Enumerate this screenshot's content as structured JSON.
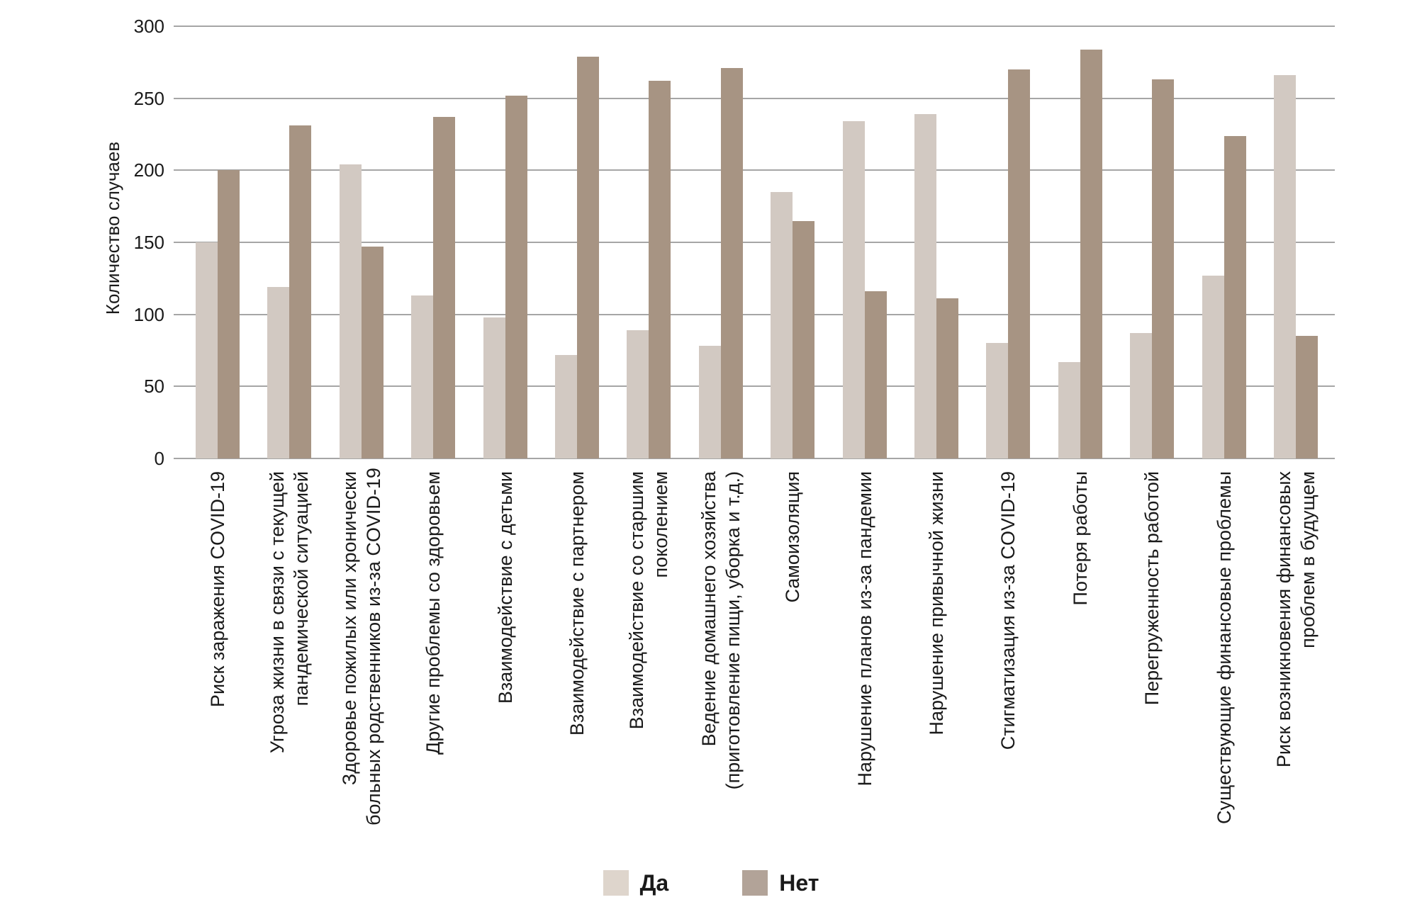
{
  "chart_data": {
    "type": "bar",
    "title": "",
    "xlabel": "",
    "ylabel": "Количество случаев",
    "ylim": [
      0,
      300
    ],
    "yticks": [
      0,
      50,
      100,
      150,
      200,
      250,
      300
    ],
    "grid": true,
    "legend_position": "bottom-center",
    "categories": [
      {
        "label": "Риск заражения COVID-19",
        "lines": [
          "Риск заражения COVID-19"
        ]
      },
      {
        "label": "Угроза жизни в связи с текущей пандемической ситуацией",
        "lines": [
          "Угроза жизни в связи с текущей",
          "пандемической ситуацией"
        ]
      },
      {
        "label": "Здоровье пожилых или хронически больных родственников из-за COVID-19",
        "lines": [
          "Здоровье пожилых или хронически",
          "больных родственников из-за COVID-19"
        ]
      },
      {
        "label": "Другие проблемы со здоровьем",
        "lines": [
          "Другие проблемы со здоровьем"
        ]
      },
      {
        "label": "Взаимодействие с детьми",
        "lines": [
          "Взаимодействие с детьми"
        ]
      },
      {
        "label": "Взаимодействие с партнером",
        "lines": [
          "Взаимодействие с партнером"
        ]
      },
      {
        "label": "Взаимодействие со старшим поколением",
        "lines": [
          "Взаимодействие со старшим",
          "поколением"
        ]
      },
      {
        "label": "Ведение домашнего хозяйства (приготовление пищи, уборка и т.д.)",
        "lines": [
          "Ведение домашнего хозяйства",
          "(приготовление пищи, уборка и т.д.)"
        ]
      },
      {
        "label": "Самоизоляция",
        "lines": [
          "Самоизоляция"
        ]
      },
      {
        "label": "Нарушение планов из-за пандемии",
        "lines": [
          "Нарушение планов из-за пандемии"
        ]
      },
      {
        "label": "Нарушение привычной жизни",
        "lines": [
          "Нарушение привычной жизни"
        ]
      },
      {
        "label": "Стигматизация из-за COVID-19",
        "lines": [
          "Стигматизация из-за COVID-19"
        ]
      },
      {
        "label": "Потеря работы",
        "lines": [
          "Потеря работы"
        ]
      },
      {
        "label": "Перегруженность работой",
        "lines": [
          "Перегруженность работой"
        ]
      },
      {
        "label": "Существующие финансовые проблемы",
        "lines": [
          "Существующие финансовые проблемы"
        ]
      },
      {
        "label": "Риск возникновения финансовых проблем в будущем",
        "lines": [
          "Риск возникновения финансовых",
          "проблем в будущем"
        ]
      }
    ],
    "series": [
      {
        "name": "Да",
        "color": "#d2c9c2",
        "legend_color": "#ded5cc",
        "values": [
          150,
          119,
          204,
          113,
          98,
          72,
          89,
          78,
          185,
          234,
          239,
          80,
          67,
          87,
          127,
          266
        ]
      },
      {
        "name": "Нет",
        "color": "#a79483",
        "legend_color": "#b2a398",
        "values": [
          200,
          231,
          147,
          237,
          252,
          279,
          262,
          271,
          165,
          116,
          111,
          270,
          284,
          263,
          224,
          85
        ]
      }
    ]
  },
  "colors": {
    "background": "#ffffff",
    "grid": "#a6a6a6",
    "text": "#1a1a1a"
  }
}
